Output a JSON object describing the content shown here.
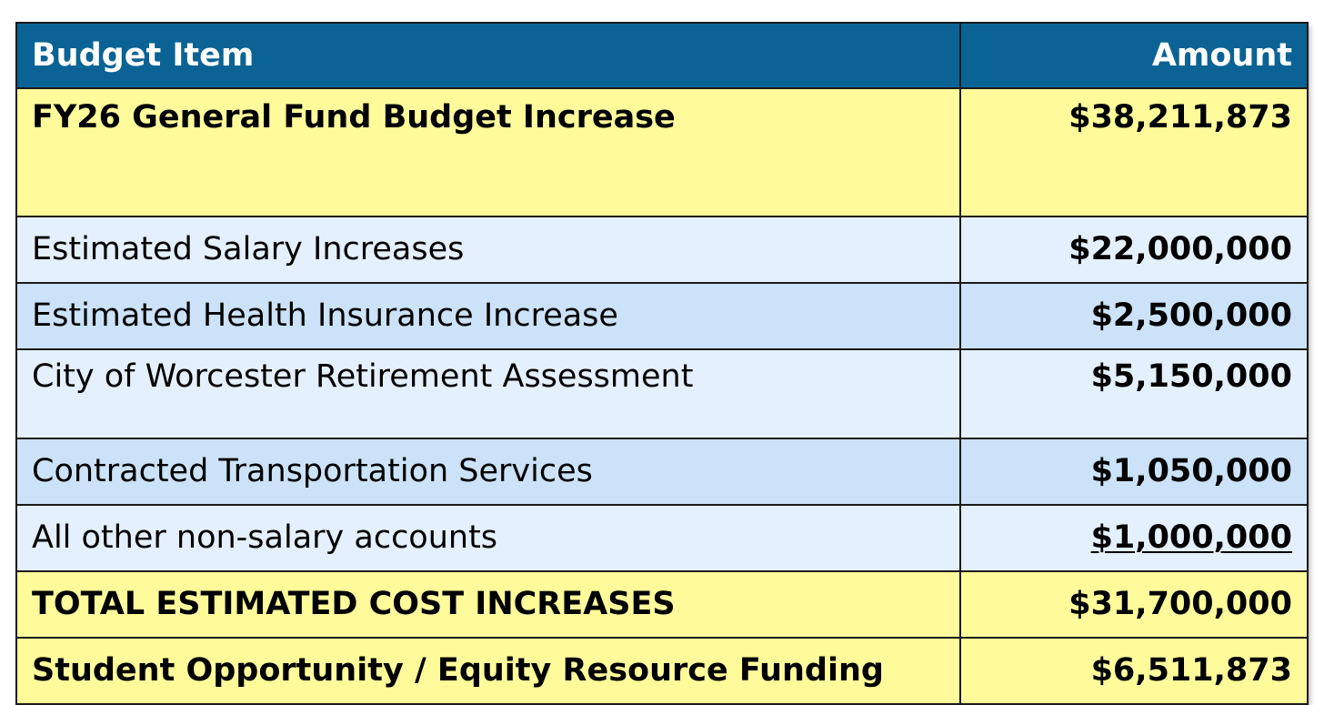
{
  "colors": {
    "header_bg": "#0a6394",
    "header_text": "#ffffff",
    "highlight_yellow": "#fffb9b",
    "row_light_blue": "#e4f0fd",
    "row_mid_blue": "#cbe2f8"
  },
  "header": {
    "item": "Budget Item",
    "amount": "Amount"
  },
  "rows": [
    {
      "item": "FY26 General Fund Budget Increase",
      "amount": "$38,211,873"
    },
    {
      "item": "Estimated Salary Increases",
      "amount": "$22,000,000"
    },
    {
      "item": "Estimated Health Insurance Increase",
      "amount": "$2,500,000"
    },
    {
      "item": "City of Worcester Retirement Assessment",
      "amount": "$5,150,000"
    },
    {
      "item": "Contracted Transportation Services",
      "amount": "$1,050,000"
    },
    {
      "item": "All other non-salary accounts",
      "amount": "$1,000,000"
    },
    {
      "item": "TOTAL ESTIMATED COST INCREASES",
      "amount": "$31,700,000"
    },
    {
      "item": "Student Opportunity / Equity Resource Funding",
      "amount": "$6,511,873"
    }
  ]
}
